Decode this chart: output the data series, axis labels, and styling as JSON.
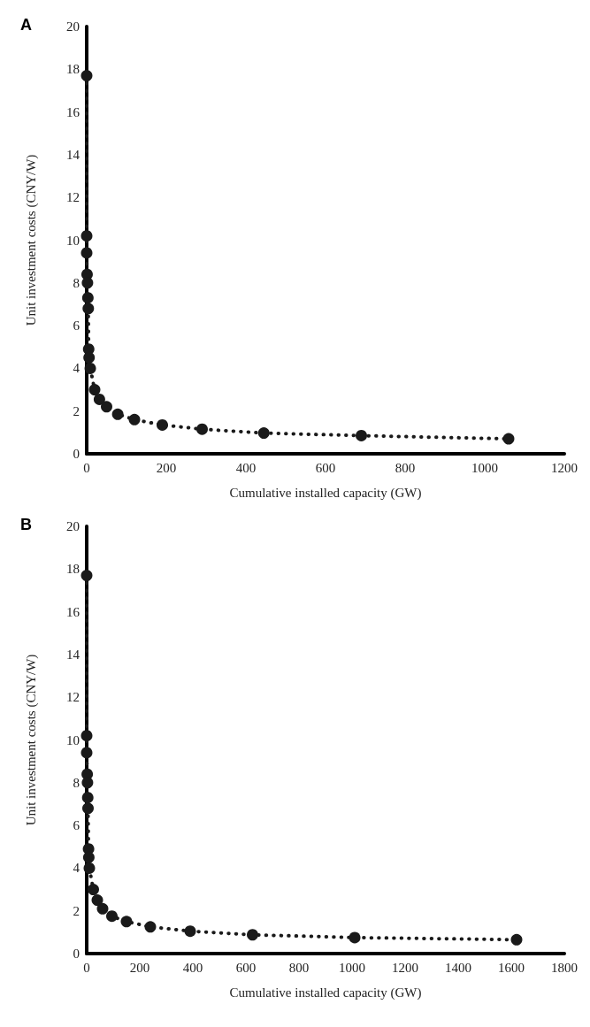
{
  "chart_data": [
    {
      "type": "line",
      "title": "A",
      "xlabel": "Cumulative installed capacity (GW)",
      "ylabel": "Unit investment costs (CNY/W)",
      "xlim": [
        0,
        1200
      ],
      "xticks": [
        0,
        200,
        400,
        600,
        800,
        1000,
        1200
      ],
      "ylim": [
        0,
        20
      ],
      "yticks": [
        0,
        2,
        4,
        6,
        8,
        10,
        12,
        14,
        16,
        18,
        20
      ],
      "grid": false,
      "marker": "circle",
      "line_style": "dotted",
      "series": [
        {
          "color": "#1a1a1a",
          "x": [
            0,
            0,
            0,
            1,
            2,
            3,
            4,
            5,
            6,
            9,
            20,
            32,
            50,
            78,
            120,
            190,
            290,
            445,
            690,
            1060
          ],
          "values": [
            17.7,
            10.2,
            9.4,
            8.4,
            8.0,
            7.3,
            6.8,
            4.9,
            4.5,
            4.0,
            3.0,
            2.55,
            2.2,
            1.85,
            1.6,
            1.35,
            1.15,
            0.97,
            0.85,
            0.7
          ]
        }
      ]
    },
    {
      "type": "line",
      "title": "B",
      "xlabel": "Cumulative installed capacity (GW)",
      "ylabel": "Unit investment costs (CNY/W)",
      "xlim": [
        0,
        1800
      ],
      "xticks": [
        0,
        200,
        400,
        600,
        800,
        1000,
        1200,
        1400,
        1600,
        1800
      ],
      "ylim": [
        0,
        20
      ],
      "yticks": [
        0,
        2,
        4,
        6,
        8,
        10,
        12,
        14,
        16,
        18,
        20
      ],
      "grid": false,
      "marker": "circle",
      "line_style": "dotted",
      "series": [
        {
          "color": "#1a1a1a",
          "x": [
            0,
            0,
            0,
            2,
            3,
            4,
            5,
            7,
            8,
            10,
            25,
            40,
            60,
            95,
            150,
            240,
            390,
            625,
            1010,
            1620
          ],
          "values": [
            17.7,
            10.2,
            9.4,
            8.4,
            8.0,
            7.3,
            6.8,
            4.9,
            4.5,
            4.0,
            3.0,
            2.5,
            2.1,
            1.75,
            1.5,
            1.25,
            1.05,
            0.88,
            0.75,
            0.65
          ]
        }
      ]
    }
  ]
}
